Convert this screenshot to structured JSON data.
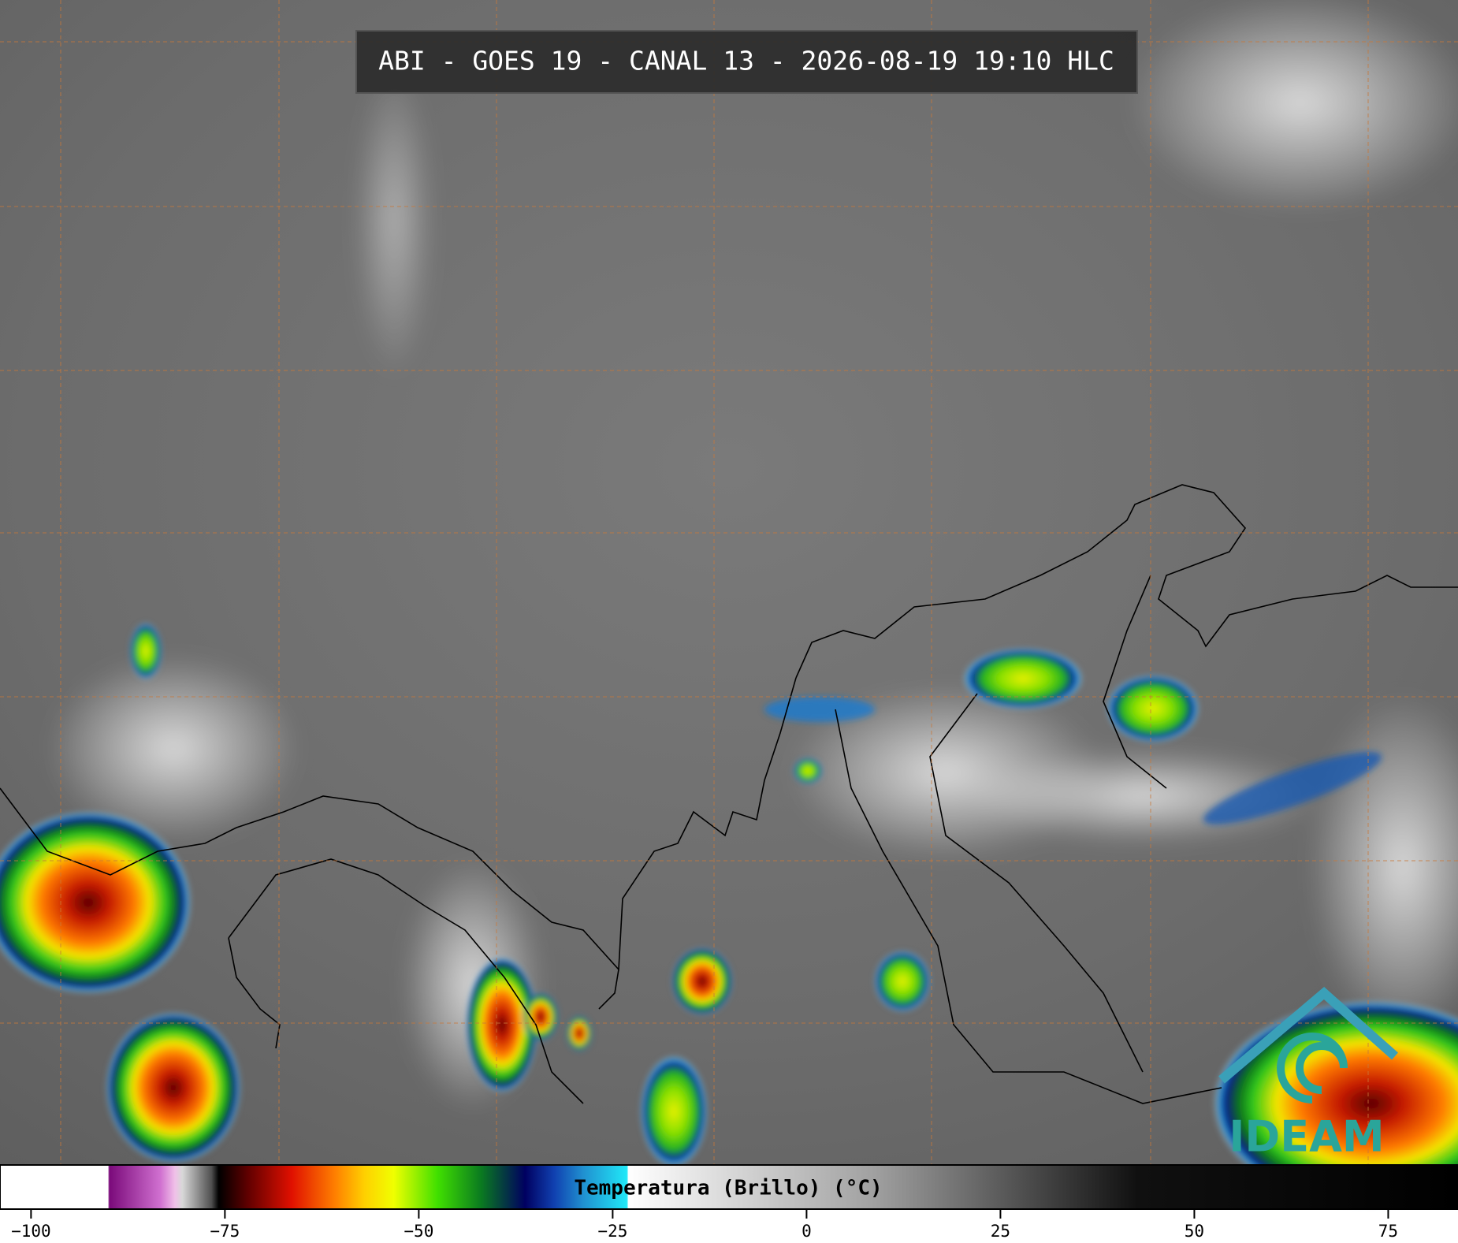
{
  "header": {
    "title": "ABI - GOES 19 - CANAL 13 - 2026-08-19 19:10 HLC"
  },
  "colorbar": {
    "label": "Temperatura (Brillo) (°C)",
    "lim": [
      -104,
      84
    ],
    "ticks": [
      {
        "value": -100,
        "label": "−100"
      },
      {
        "value": -75,
        "label": "−75"
      },
      {
        "value": -50,
        "label": "−50"
      },
      {
        "value": -25,
        "label": "−25"
      },
      0,
      25,
      50,
      75
    ]
  },
  "logo": {
    "text": "IDEAM"
  }
}
